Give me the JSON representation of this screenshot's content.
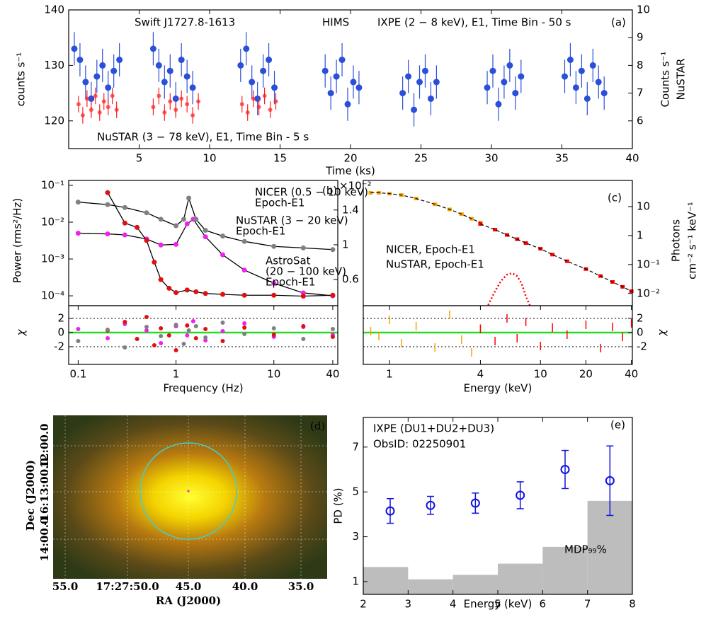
{
  "chart_data": [
    {
      "type": "lightcurve",
      "panel": "(a)",
      "title": "Swift J1727.8-1613",
      "subtitle": "HIMS",
      "xlabel": "Time (ks)",
      "ylabel": "counts s⁻¹",
      "y2label": [
        "Counts s⁻¹",
        "NuSTAR"
      ],
      "xlim": [
        0,
        40
      ],
      "xticks": [
        5,
        10,
        15,
        20,
        25,
        30,
        35,
        40
      ],
      "ylim": [
        115,
        140
      ],
      "yticks": [
        120,
        130,
        140
      ],
      "y2lim": [
        5,
        10
      ],
      "y2ticks": [
        6,
        7,
        8,
        9,
        10
      ],
      "series": [
        {
          "name": "IXPE (2 − 8 keV), E1, Time Bin - 50 s",
          "color": "#2b4fd8",
          "error": 3,
          "x": [
            0.4,
            0.8,
            1.2,
            1.6,
            2.0,
            2.4,
            2.8,
            3.2,
            3.6,
            6.0,
            6.4,
            6.8,
            7.2,
            7.6,
            8.0,
            8.4,
            8.8,
            12.2,
            12.6,
            13.0,
            13.4,
            13.8,
            14.2,
            14.6,
            18.2,
            18.6,
            19.0,
            19.4,
            19.8,
            20.2,
            20.6,
            23.7,
            24.1,
            24.5,
            24.9,
            25.3,
            25.7,
            26.1,
            29.7,
            30.1,
            30.5,
            30.9,
            31.3,
            31.7,
            32.1,
            35.2,
            35.6,
            36.0,
            36.4,
            36.8,
            37.2,
            37.6,
            38.0
          ],
          "values": [
            133,
            131,
            127,
            124,
            128,
            130,
            126,
            129,
            131,
            133,
            130,
            127,
            129,
            124,
            131,
            128,
            126,
            130,
            133,
            127,
            124,
            129,
            131,
            126,
            129,
            125,
            128,
            131,
            123,
            127,
            126,
            125,
            128,
            122,
            127,
            129,
            124,
            127,
            126,
            129,
            123,
            127,
            130,
            125,
            128,
            128,
            131,
            126,
            129,
            124,
            130,
            127,
            125
          ]
        },
        {
          "name": "NuSTAR (3 − 78 keV), E1, Time Bin - 5 s",
          "color": "#ff2020",
          "axis": "y2",
          "error": 0.3,
          "x": [
            0.7,
            1.0,
            1.3,
            1.6,
            1.9,
            2.2,
            2.5,
            2.8,
            3.1,
            3.4,
            6.0,
            6.4,
            6.8,
            7.2,
            7.6,
            8.0,
            8.4,
            8.8,
            9.2,
            12.3,
            12.7,
            13.1,
            13.5,
            13.9,
            14.3,
            14.7
          ],
          "values": [
            6.6,
            6.2,
            6.8,
            6.4,
            6.9,
            6.3,
            6.7,
            6.5,
            6.9,
            6.4,
            6.5,
            6.9,
            6.3,
            6.7,
            6.4,
            6.8,
            6.6,
            6.2,
            6.7,
            6.6,
            6.3,
            6.8,
            6.5,
            6.9,
            6.4,
            6.7
          ]
        }
      ]
    },
    {
      "type": "psd",
      "panel": "(b)",
      "xlabel": "Frequency (Hz)",
      "ylabel": "Power (rms²/Hz)",
      "residual_label": "χ",
      "xlog": true,
      "ylog": true,
      "xlim": [
        0.08,
        45
      ],
      "xticks": [
        0.1,
        1,
        10,
        40
      ],
      "ylim": [
        5.4e-05,
        0.136
      ],
      "yticks": [
        {
          "value": 0.1,
          "label": "10⁻¹"
        },
        {
          "value": 0.01,
          "label": "10⁻²"
        },
        {
          "value": 0.001,
          "label": "10⁻³"
        },
        {
          "value": 0.0001,
          "label": "10⁻⁴"
        }
      ],
      "y2lim": [
        0.3,
        1.74
      ],
      "y2ticks": [
        {
          "value": 1.4,
          "label": "1.4"
        },
        1,
        {
          "value": 0.6,
          "label": "0.6"
        }
      ],
      "y2_multiplier": "×10⁻²",
      "residual_ylim": [
        -4.5,
        3.8
      ],
      "residual_yticks": [
        2,
        0,
        -2
      ],
      "series": [
        {
          "label_lines": [
            "NICER (0.5 − 10 keV)",
            "Epoch-E1"
          ],
          "color": "#ee22ee",
          "x": [
            0.1,
            0.2,
            0.3,
            0.5,
            0.7,
            1.0,
            1.3,
            1.5,
            2,
            3,
            5,
            10,
            20,
            40
          ],
          "values": [
            0.005,
            0.0048,
            0.0045,
            0.0035,
            0.0024,
            0.0025,
            0.009,
            0.012,
            0.004,
            0.0013,
            0.0005,
            0.00022,
            0.00012,
            0.0001
          ],
          "residuals": [
            0.5,
            -0.8,
            1.2,
            0.3,
            -1.5,
            0.9,
            -0.4,
            1.6,
            -1.1,
            0.2,
            1.3,
            -0.6,
            0.8,
            -0.3
          ]
        },
        {
          "label_lines": [
            "NuSTAR (3 − 20 keV)",
            "Epoch-E1"
          ],
          "color": "#e01010",
          "axis": "y2",
          "x": [
            0.2,
            0.3,
            0.4,
            0.5,
            0.6,
            0.7,
            0.85,
            1.0,
            1.3,
            1.6,
            2,
            3,
            5,
            10,
            20,
            40
          ],
          "values": [
            1.6,
            1.25,
            1.2,
            1.05,
            0.8,
            0.6,
            0.5,
            0.45,
            0.48,
            0.46,
            0.44,
            0.43,
            0.42,
            0.42,
            0.41,
            0.42
          ],
          "residuals": [
            0.3,
            1.5,
            -0.9,
            2.2,
            -1.8,
            0.6,
            -0.4,
            -2.5,
            1.0,
            -0.8,
            0.5,
            -1.2,
            0.7,
            -0.3,
            0.9,
            -0.6
          ]
        },
        {
          "label_lines": [
            "AstroSat",
            "(20 − 100 keV)",
            "Epoch-E1"
          ],
          "color": "#808080",
          "x": [
            0.1,
            0.2,
            0.3,
            0.5,
            0.7,
            1.0,
            1.2,
            1.35,
            1.6,
            2,
            3,
            5,
            10,
            20,
            40
          ],
          "values": [
            0.035,
            0.03,
            0.025,
            0.018,
            0.012,
            0.008,
            0.012,
            0.045,
            0.012,
            0.006,
            0.0042,
            0.003,
            0.0022,
            0.002,
            0.0018
          ],
          "residuals": [
            -1.2,
            0.4,
            -2.1,
            0.8,
            -0.5,
            1.1,
            -1.6,
            0.3,
            0.9,
            -0.7,
            1.4,
            -0.2,
            0.6,
            -0.9,
            0.5
          ]
        }
      ]
    },
    {
      "type": "spectrum",
      "panel": "(c)",
      "xlabel": "Energy (keV)",
      "ylabel": [
        "Photons",
        "cm⁻² s⁻¹ keV⁻¹"
      ],
      "residual_label": "χ",
      "xlog": true,
      "ylog": true,
      "xlim": [
        0.67,
        40.6
      ],
      "xticks": [
        1,
        4,
        10,
        20,
        40
      ],
      "ylim": [
        0.0038,
        80
      ],
      "yticks": [
        10,
        1,
        {
          "value": 0.1,
          "label": "10⁻¹"
        },
        {
          "value": 0.01,
          "label": "10⁻²"
        }
      ],
      "residual_ylim": [
        -4.5,
        3.8
      ],
      "residual_yticks": [
        2,
        0,
        -2
      ],
      "series": [
        {
          "name": "NICER, Epoch-E1",
          "color": "#f5a300",
          "x": [
            0.75,
            0.85,
            1,
            1.2,
            1.5,
            2,
            2.5,
            3,
            3.5,
            4
          ],
          "values": [
            30,
            30,
            28,
            25,
            19,
            12,
            8,
            5.5,
            3.8,
            2.8
          ],
          "residuals": [
            0.2,
            -0.5,
            1.8,
            -1.5,
            0.9,
            -2.1,
            2.5,
            -1.0,
            -2.8,
            0.6
          ]
        },
        {
          "name": "NuSTAR, Epoch-E1",
          "color": "#ff0000",
          "x": [
            4,
            5,
            6,
            7,
            8,
            10,
            12,
            15,
            20,
            25,
            30,
            35,
            40
          ],
          "values": [
            2.5,
            1.6,
            1.05,
            0.75,
            0.55,
            0.35,
            0.22,
            0.13,
            0.07,
            0.04,
            0.025,
            0.017,
            0.012
          ],
          "residuals": [
            0.5,
            -1.2,
            2.0,
            -0.8,
            1.5,
            -1.9,
            0.7,
            -0.3,
            1.1,
            -2.2,
            0.8,
            -0.6,
            1.3
          ]
        }
      ],
      "line_feature": {
        "color": "#ff0000",
        "x": [
          4.5,
          5,
          5.5,
          6,
          6.5,
          7,
          7.5,
          8,
          8.5
        ],
        "values": [
          0.004,
          0.012,
          0.028,
          0.045,
          0.05,
          0.04,
          0.022,
          0.008,
          0.0039
        ]
      }
    },
    {
      "type": "image",
      "panel": "(d)",
      "xlabel": "RA (J2000)",
      "ylabel": "Dec (J2000)",
      "xtick_labels": [
        "55.0",
        "17:27:50.0",
        "45.0",
        "40.0",
        "35.0"
      ],
      "ytick_labels": [
        "12:00.0",
        "-16:13:00.0",
        "14:00.0"
      ]
    },
    {
      "type": "errorbar",
      "panel": "(e)",
      "xlabel": "Energy (keV)",
      "ylabel": "PD (%)",
      "annotations": [
        "IXPE (DU1+DU2+DU3)",
        "ObsID: 02250901"
      ],
      "xlim": [
        2,
        8
      ],
      "xticks": [
        2,
        3,
        4,
        5,
        6,
        7,
        8
      ],
      "ylim": [
        0.43,
        8.32
      ],
      "yticks": [
        1,
        3,
        5,
        7
      ],
      "series": [
        {
          "color": "#1010e0",
          "x": [
            2.6,
            3.5,
            4.5,
            5.5,
            6.5,
            7.5
          ],
          "values": [
            4.15,
            4.4,
            4.5,
            4.85,
            6.0,
            5.5
          ],
          "errors": [
            0.55,
            0.4,
            0.45,
            0.6,
            0.85,
            1.55
          ]
        }
      ],
      "mdp": {
        "label": "MDP₉₉%",
        "color": "#bdbdbd",
        "bins": [
          2,
          3,
          4,
          5,
          6,
          7,
          8
        ],
        "values": [
          1.65,
          1.1,
          1.3,
          1.8,
          2.55,
          4.6
        ]
      }
    }
  ]
}
